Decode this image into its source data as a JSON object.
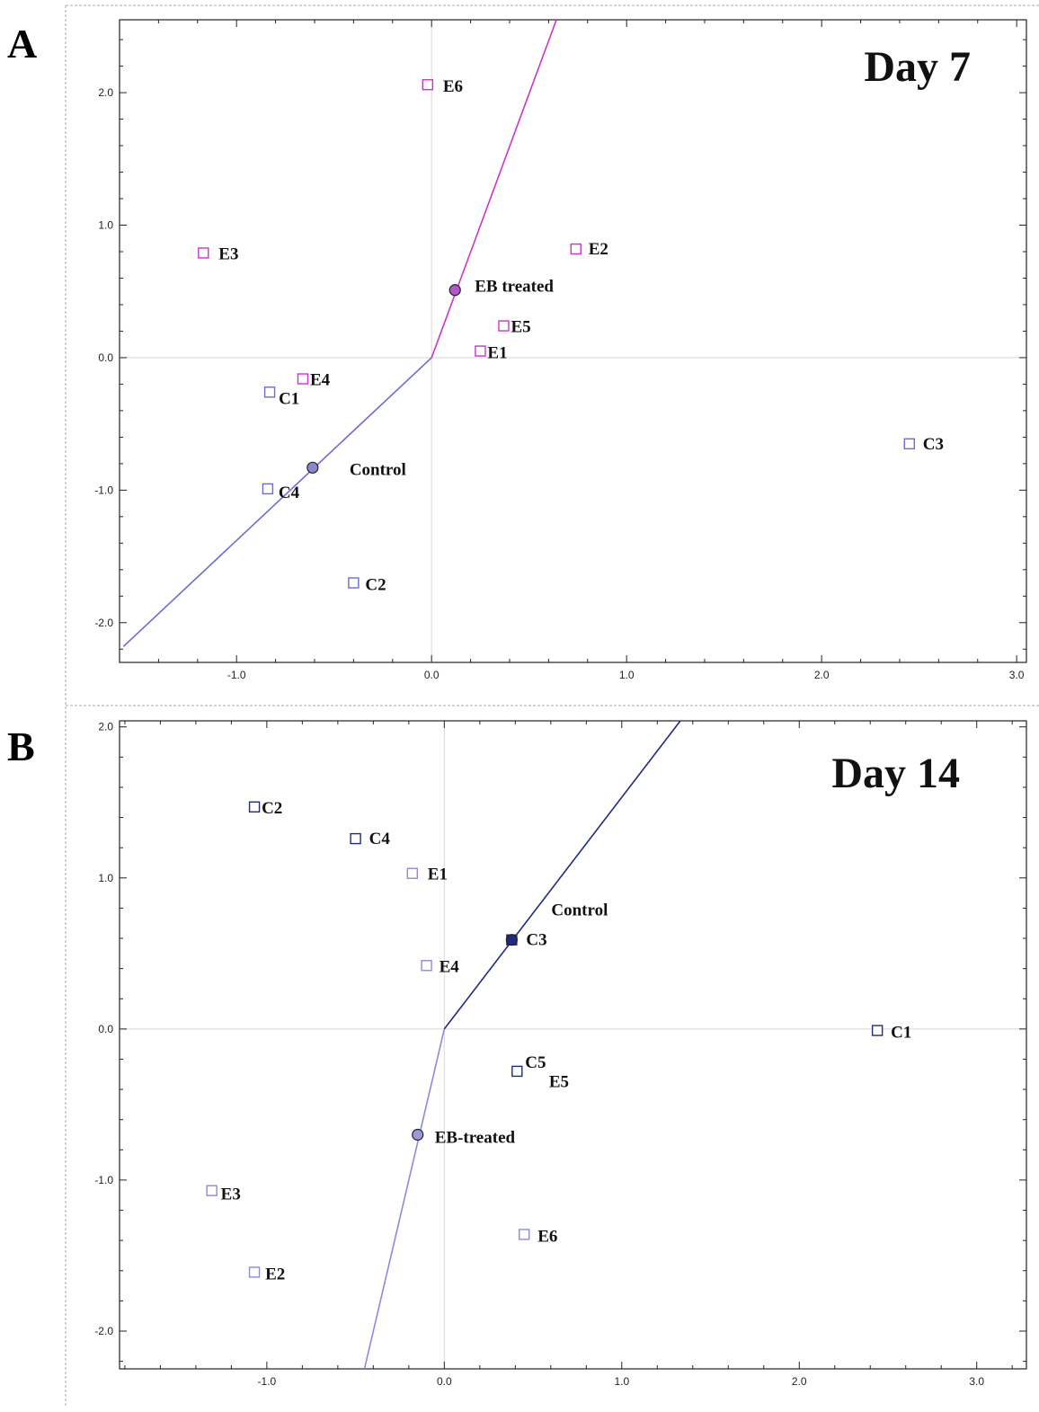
{
  "chart_data": [
    {
      "type": "scatter",
      "panel_label": "A",
      "title": "Day 7",
      "xlim": [
        -1.6,
        3.05
      ],
      "ylim": [
        -2.3,
        2.55
      ],
      "xticks": [
        -1.0,
        0.0,
        1.0,
        2.0,
        3.0
      ],
      "xtick_labels": [
        "-1.0",
        "0.0",
        "1.0",
        "2.0",
        "3.0"
      ],
      "yticks": [
        -2.0,
        -1.0,
        0.0,
        1.0,
        2.0
      ],
      "ytick_labels": [
        "-2.0",
        "-1.0",
        "0.0",
        "1.0",
        "2.0"
      ],
      "grid": false,
      "colors": {
        "treated": "#cc33cc",
        "control": "#6b6bd6",
        "centroid_fill": "#8888cc",
        "treated_centroid_fill": "#b05ac8"
      },
      "points": [
        {
          "label": "E6",
          "x": -0.02,
          "y": 2.06,
          "group": "treated"
        },
        {
          "label": "E3",
          "x": -1.17,
          "y": 0.79,
          "group": "treated"
        },
        {
          "label": "E2",
          "x": 0.74,
          "y": 0.82,
          "group": "treated"
        },
        {
          "label": "E5",
          "x": 0.37,
          "y": 0.24,
          "group": "treated"
        },
        {
          "label": "E1",
          "x": 0.25,
          "y": 0.05,
          "group": "treated"
        },
        {
          "label": "E4",
          "x": -0.66,
          "y": -0.16,
          "group": "treated"
        },
        {
          "label": "C1",
          "x": -0.83,
          "y": -0.26,
          "group": "control"
        },
        {
          "label": "C3",
          "x": 2.45,
          "y": -0.65,
          "group": "control"
        },
        {
          "label": "C4",
          "x": -0.84,
          "y": -0.99,
          "group": "control"
        },
        {
          "label": "C2",
          "x": -0.4,
          "y": -1.7,
          "group": "control"
        }
      ],
      "centroids": [
        {
          "label": "EB treated",
          "x": 0.12,
          "y": 0.51,
          "group": "treated"
        },
        {
          "label": "Control",
          "x": -0.61,
          "y": -0.83,
          "group": "control"
        }
      ],
      "vectors": [
        {
          "group": "treated",
          "from": [
            0.0,
            0.0
          ],
          "to": [
            0.64,
            2.55
          ]
        },
        {
          "group": "control",
          "from": [
            0.0,
            0.0
          ],
          "to": [
            -1.58,
            -2.18
          ]
        }
      ]
    },
    {
      "type": "scatter",
      "panel_label": "B",
      "title": "Day 14",
      "xlim": [
        -1.83,
        3.28
      ],
      "ylim": [
        -2.25,
        2.04
      ],
      "xticks": [
        -1.0,
        0.0,
        1.0,
        2.0,
        3.0
      ],
      "xtick_labels": [
        "-1.0",
        "0.0",
        "1.0",
        "2.0",
        "3.0"
      ],
      "yticks": [
        -2.0,
        -1.0,
        0.0,
        1.0,
        2.0
      ],
      "ytick_labels": [
        "-2.0",
        "-1.0",
        "0.0",
        "1.0",
        "2.0"
      ],
      "grid": false,
      "colors": {
        "control": "#1f2a80",
        "treated": "#8a8ae0",
        "centroid_fill": "#1f2a80",
        "treated_centroid_fill": "#9a9ad8"
      },
      "points": [
        {
          "label": "C2",
          "x": -1.07,
          "y": 1.47,
          "group": "control"
        },
        {
          "label": "C4",
          "x": -0.5,
          "y": 1.26,
          "group": "control"
        },
        {
          "label": "E1",
          "x": -0.18,
          "y": 1.03,
          "group": "treated"
        },
        {
          "label": "E4",
          "x": -0.1,
          "y": 0.42,
          "group": "treated"
        },
        {
          "label": "C3",
          "x": 0.38,
          "y": 0.59,
          "group": "control"
        },
        {
          "label": "C1",
          "x": 2.44,
          "y": -0.01,
          "group": "control"
        },
        {
          "label": "C5",
          "x": 0.41,
          "y": -0.28,
          "group": "control"
        },
        {
          "label": "E3",
          "x": -1.31,
          "y": -1.07,
          "group": "treated"
        },
        {
          "label": "E6",
          "x": 0.45,
          "y": -1.36,
          "group": "treated"
        },
        {
          "label": "E2",
          "x": -1.07,
          "y": -1.61,
          "group": "treated"
        }
      ],
      "extra_labels": [
        {
          "label": "E5",
          "x": 0.59,
          "y": -0.35
        }
      ],
      "centroids": [
        {
          "label": "Control",
          "x": 0.38,
          "y": 0.59,
          "group": "control"
        },
        {
          "label": "EB-treated",
          "x": -0.15,
          "y": -0.7,
          "group": "treated"
        }
      ],
      "vectors": [
        {
          "group": "control",
          "from": [
            0.0,
            0.0
          ],
          "to": [
            1.33,
            2.04
          ]
        },
        {
          "group": "treated",
          "from": [
            0.0,
            0.0
          ],
          "to": [
            -0.45,
            -2.25
          ]
        }
      ]
    }
  ]
}
